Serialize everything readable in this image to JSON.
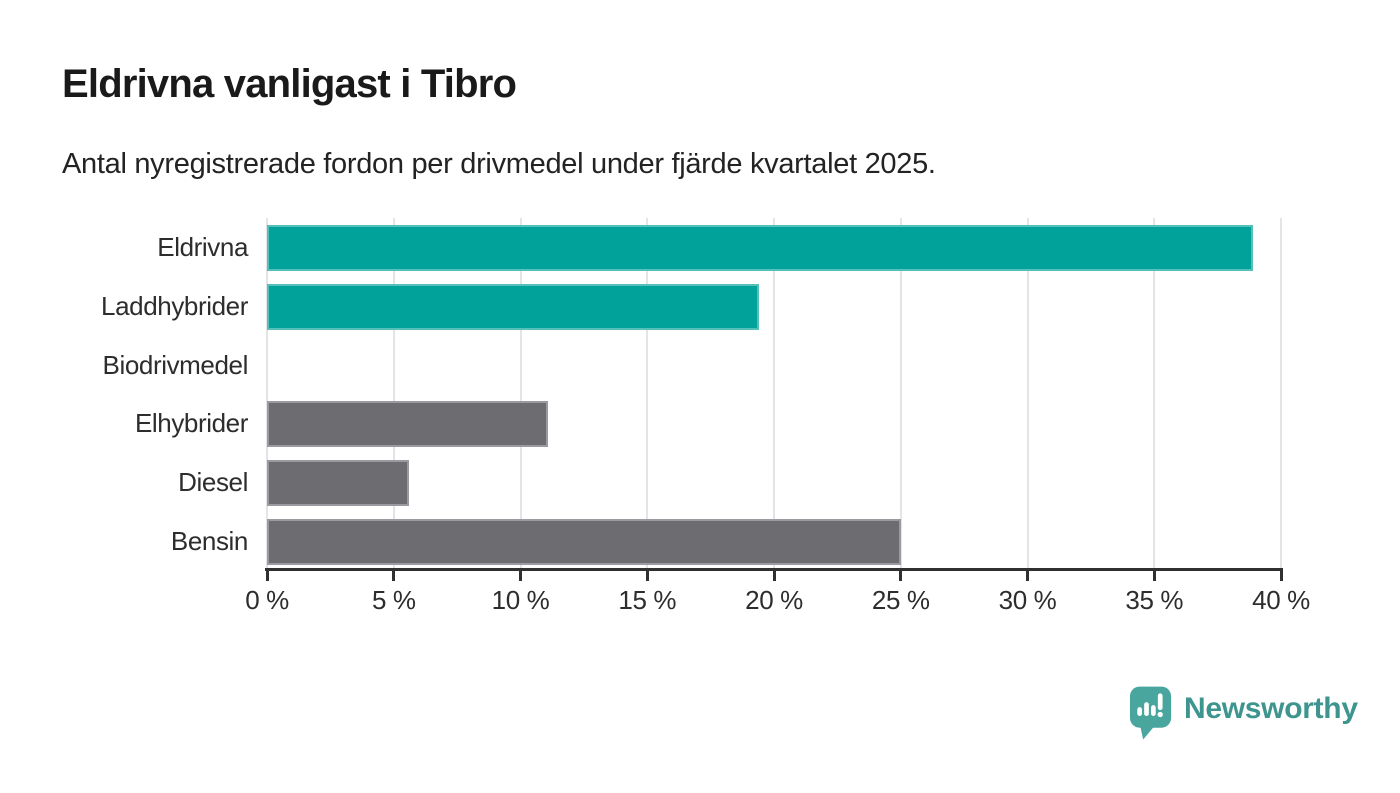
{
  "header": {
    "title": "Eldrivna vanligast i Tibro",
    "subtitle": "Antal nyregistrerade fordon per drivmedel under fjärde kvartalet 2025."
  },
  "chart_data": {
    "type": "bar",
    "orientation": "horizontal",
    "title": "Eldrivna vanligast i Tibro",
    "subtitle": "Antal nyregistrerade fordon per drivmedel under fjärde kvartalet 2025.",
    "categories": [
      "Eldrivna",
      "Laddhybrider",
      "Biodrivmedel",
      "Elhybrider",
      "Diesel",
      "Bensin"
    ],
    "values": [
      38.9,
      19.4,
      0,
      11.1,
      5.6,
      25.0
    ],
    "unit": "%",
    "xlim": [
      0,
      40
    ],
    "xticks": [
      0,
      5,
      10,
      15,
      20,
      25,
      30,
      35,
      40
    ],
    "xtick_labels": [
      "0 %",
      "5 %",
      "10 %",
      "15 %",
      "20 %",
      "25 %",
      "30 %",
      "35 %",
      "40 %"
    ],
    "grid": "vertical-only",
    "legend": "none",
    "bar_color_keys": [
      "electric",
      "electric",
      "fossil",
      "fossil",
      "fossil",
      "fossil"
    ]
  },
  "palette": {
    "electric": {
      "fill": "#00a29a",
      "edge": "#55c0ba"
    },
    "fossil": {
      "fill": "#6c6c71",
      "edge": "#9a9aa0"
    },
    "gridline": "#e4e4e6",
    "axis": "#303030"
  },
  "branding": {
    "logo_text": "Newsworthy",
    "logo_text_color": "#3e948e",
    "logo_icon_color": "#48a69f",
    "logo_icon": "newsworthy-chart-bubble-icon"
  }
}
